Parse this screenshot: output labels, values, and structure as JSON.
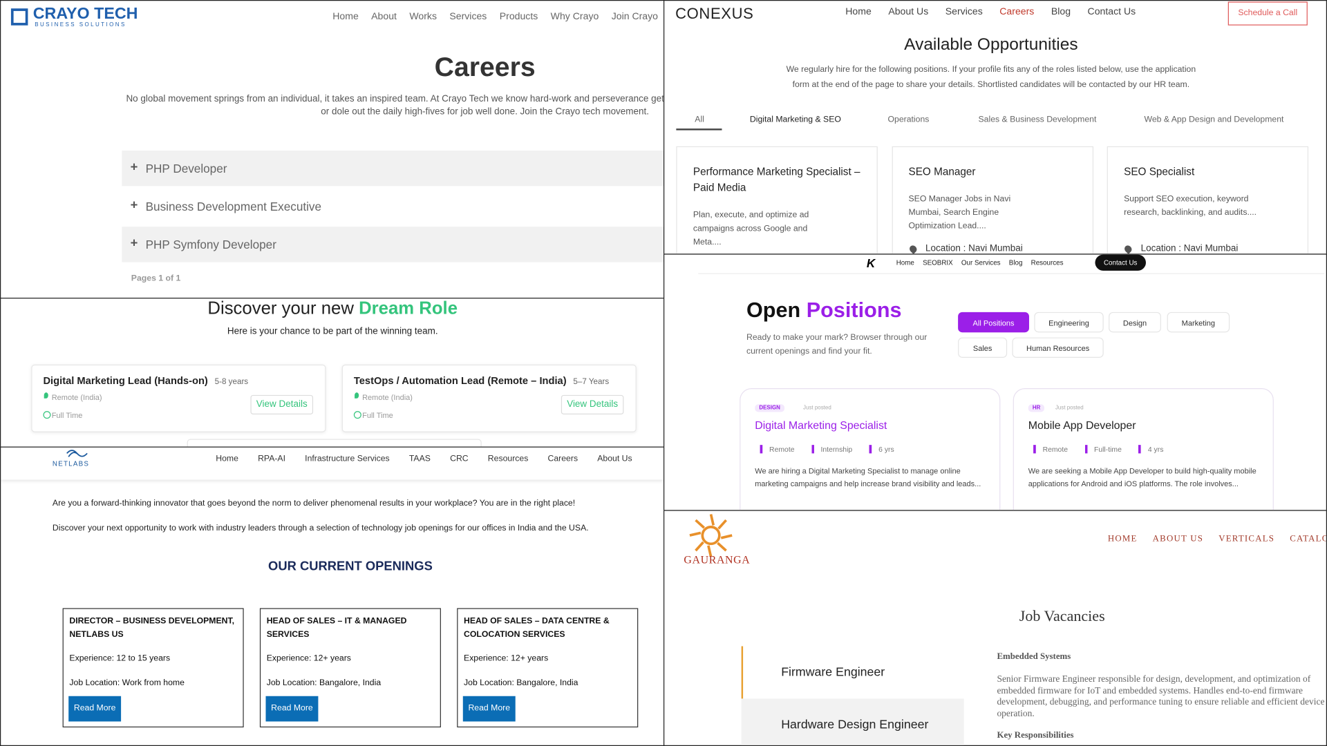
{
  "crayo": {
    "logo": "CRAYO TECH",
    "logo_sub": "BUSINESS SOLUTIONS",
    "nav": [
      "Home",
      "About",
      "Works",
      "Services",
      "Products",
      "Why Crayo",
      "Join Crayo"
    ],
    "title": "Careers",
    "intro_lines": [
      "No global movement springs from an individual, it takes an inspired team. At Crayo Tech we know hard-work and perseverance get the job",
      "or dole out the daily high-fives for job well done. Join the Crayo tech movement."
    ],
    "jobs": [
      "PHP Developer",
      "Business Development Executive",
      "PHP Symfony Developer"
    ],
    "pages": "Pages 1 of 1"
  },
  "dream": {
    "title_a": "Discover your new",
    "title_b": "Dream Role",
    "subtitle": "Here is your chance to be part of the winning team.",
    "jobs": [
      {
        "title": "Digital Marketing Lead (Hands-on)",
        "exp": "5-8 years",
        "location": "Remote (India)",
        "type": "Full Time",
        "button": "View Details"
      },
      {
        "title": "TestOps / Automation Lead (Remote – India)",
        "exp": "5–7 Years",
        "location": "Remote (India)",
        "type": "Full Time",
        "button": "View Details"
      }
    ]
  },
  "netlabs": {
    "logo": "NETLABS",
    "nav": [
      "Home",
      "RPA-AI",
      "Infrastructure Services",
      "TAAS",
      "CRC",
      "Resources",
      "Careers",
      "About Us"
    ],
    "para1": "Are you a forward-thinking innovator that goes beyond the norm to deliver phenomenal results in your workplace? You are in the right place!",
    "para2": "Discover your next opportunity to work with industry leaders through a selection of technology job openings for our offices in India and the USA.",
    "heading": "OUR CURRENT OPENINGS",
    "jobs": [
      {
        "title": "DIRECTOR – BUSINESS DEVELOPMENT, NETLABS US",
        "experience": "Experience: 12 to 15 years",
        "location": "Job Location: Work from home",
        "button": "Read More"
      },
      {
        "title": "HEAD OF SALES – IT & MANAGED SERVICES",
        "experience": "Experience: 12+ years",
        "location": "Job Location: Bangalore, India",
        "button": "Read More"
      },
      {
        "title": "HEAD OF SALES – DATA CENTRE & COLOCATION SERVICES",
        "experience": "Experience: 12+ years",
        "location": "Job Location: Bangalore, India",
        "button": "Read More"
      }
    ]
  },
  "conexus": {
    "logo": "CONEXUS",
    "nav": [
      "Home",
      "About Us",
      "Services",
      "Careers",
      "Blog",
      "Contact Us"
    ],
    "cta": "Schedule a Call",
    "title": "Available Opportunities",
    "intro_lines": [
      "We regularly hire for the following positions. If your profile fits any of the roles listed below, use the application",
      "form at the end of the page to share your details. Shortlisted candidates will be contacted by our HR team."
    ],
    "tabs": [
      "All",
      "Digital Marketing & SEO",
      "Operations",
      "Sales & Business Development",
      "Web & App Design and Development"
    ],
    "jobs": [
      {
        "title": "Performance Marketing Specialist – Paid Media",
        "desc": "Plan, execute, and optimize ad campaigns across Google and Meta...."
      },
      {
        "title": "SEO Manager",
        "desc": "SEO Manager Jobs in Navi Mumbai, Search Engine Optimization Lead....",
        "location": "Location : Navi Mumbai"
      },
      {
        "title": "SEO Specialist",
        "desc": "Support SEO execution, keyword research, backlinking, and audits....",
        "location": "Location : Navi Mumbai"
      }
    ]
  },
  "seobrix": {
    "nav": [
      "Home",
      "SEOBRIX",
      "Our Services",
      "Blog",
      "Resources"
    ],
    "contact": "Contact Us",
    "title_a": "Open",
    "title_b": "Positions",
    "intro": "Ready to make your mark? Browser through our current openings and find your fit.",
    "filters": [
      "All Positions",
      "Engineering",
      "Design",
      "Marketing",
      "Sales",
      "Human Resources"
    ],
    "jobs": [
      {
        "tag": "DESIGN",
        "posted": "Just posted",
        "title": "Digital Marketing Specialist",
        "meta": [
          "Remote",
          "Internship",
          "6 yrs"
        ],
        "desc": "We are hiring a Digital Marketing Specialist to manage online marketing campaigns and help increase brand visibility and leads..."
      },
      {
        "tag": "HR",
        "posted": "Just posted",
        "title": "Mobile App Developer",
        "meta": [
          "Remote",
          "Full-time",
          "4 yrs"
        ],
        "desc": "We are seeking a Mobile App Developer to build high-quality mobile applications for Android and iOS platforms. The role involves..."
      }
    ]
  },
  "gauranga": {
    "logo": "GAURANGA",
    "nav": [
      "HOME",
      "ABOUT US",
      "VERTICALS",
      "CATALOGUE"
    ],
    "title": "Job Vacancies",
    "jobs": [
      "Firmware Engineer",
      "Hardware Design Engineer"
    ],
    "category": "Embedded Systems",
    "desc": "Senior Firmware Engineer responsible for design, development, and optimization of embedded firmware for IoT and embedded systems. Handles end-to-end firmware development, debugging, and performance tuning to ensure reliable and efficient device operation.",
    "subheading": "Key Responsibilities"
  }
}
